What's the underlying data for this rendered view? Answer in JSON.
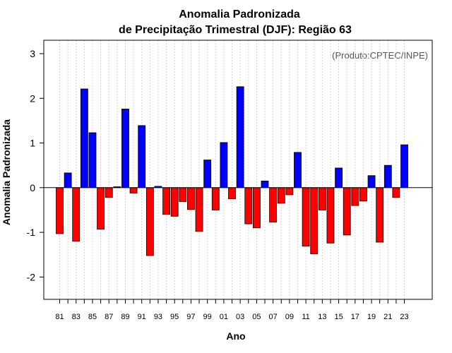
{
  "chart_data": {
    "type": "bar",
    "title": "Anomalia Padronizada",
    "subtitle": "de Precipitação Trimestral (DJF): Região 63",
    "xlabel": "Ano",
    "ylabel": "Anomalia Padronizada",
    "annotation": "(Produto:CPTEC/INPE)",
    "ylim": [
      -2.5,
      3.3
    ],
    "y_ticks": [
      -2,
      -1,
      0,
      1,
      2,
      3
    ],
    "y_tick_labels": [
      "-2",
      "-1",
      "0",
      "1",
      "2",
      "3"
    ],
    "x_tick_labels": [
      "81",
      "83",
      "85",
      "87",
      "89",
      "91",
      "93",
      "95",
      "97",
      "99",
      "01",
      "03",
      "05",
      "07",
      "09",
      "11",
      "13",
      "15",
      "17",
      "19",
      "21",
      "23"
    ],
    "grid": "vertical dotted",
    "colors": {
      "positive": "#0000ff",
      "negative": "#ff0000",
      "outline": "#000000",
      "grid": "#d3d3d3",
      "zero_line": "#000000"
    },
    "categories": [
      "81",
      "82",
      "83",
      "84",
      "85",
      "86",
      "87",
      "88",
      "89",
      "90",
      "91",
      "92",
      "93",
      "94",
      "95",
      "96",
      "97",
      "98",
      "99",
      "00",
      "01",
      "02",
      "03",
      "04",
      "05",
      "06",
      "07",
      "08",
      "09",
      "10",
      "11",
      "12",
      "13",
      "14",
      "15",
      "16",
      "17",
      "18",
      "19",
      "20",
      "21",
      "22",
      "23"
    ],
    "values": [
      -1.03,
      0.33,
      -1.2,
      2.21,
      1.23,
      -0.93,
      -0.22,
      0.02,
      1.76,
      -0.12,
      1.39,
      -1.52,
      0.03,
      -0.6,
      -0.64,
      -0.31,
      -0.49,
      -0.98,
      0.62,
      -0.5,
      1.01,
      -0.25,
      2.26,
      -0.81,
      -0.9,
      0.15,
      -0.77,
      -0.35,
      -0.16,
      0.79,
      -1.31,
      -1.48,
      -0.5,
      -1.24,
      0.44,
      -1.06,
      -0.4,
      -0.3,
      0.27,
      -1.22,
      0.5,
      -0.22,
      0.96
    ]
  }
}
